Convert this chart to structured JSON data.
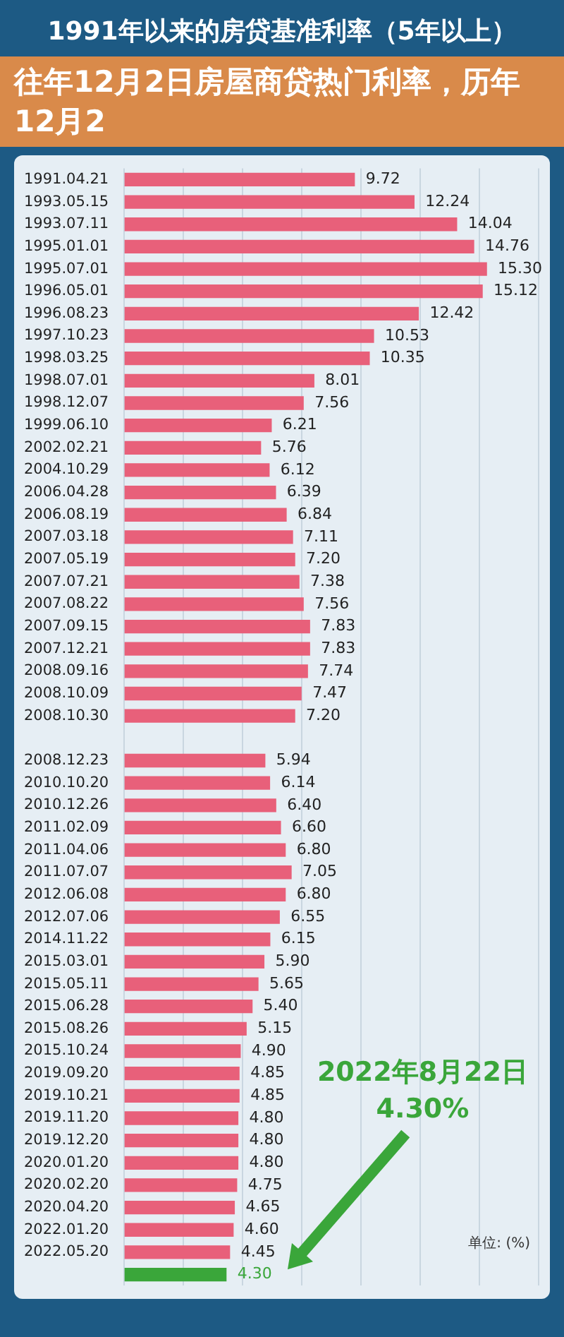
{
  "chart_data": {
    "type": "bar",
    "orientation": "horizontal",
    "title": "1991年以来的房贷基准利率（5年以上）",
    "categories": [
      "1991.04.21",
      "1993.05.15",
      "1993.07.11",
      "1995.01.01",
      "1995.07.01",
      "1996.05.01",
      "1996.08.23",
      "1997.10.23",
      "1998.03.25",
      "1998.07.01",
      "1998.12.07",
      "1999.06.10",
      "2002.02.21",
      "2004.10.29",
      "2006.04.28",
      "2006.08.19",
      "2007.03.18",
      "2007.05.19",
      "2007.07.21",
      "2007.08.22",
      "2007.09.15",
      "2007.12.21",
      "2008.09.16",
      "2008.10.09",
      "2008.10.30",
      null,
      "2008.12.23",
      "2010.10.20",
      "2010.12.26",
      "2011.02.09",
      "2011.04.06",
      "2011.07.07",
      "2012.06.08",
      "2012.07.06",
      "2014.11.22",
      "2015.03.01",
      "2015.05.11",
      "2015.06.28",
      "2015.08.26",
      "2015.10.24",
      "2019.09.20",
      "2019.10.21",
      "2019.11.20",
      "2019.12.20",
      "2020.01.20",
      "2020.02.20",
      "2020.04.20",
      "2022.01.20",
      "2022.05.20",
      null
    ],
    "values": [
      9.72,
      12.24,
      14.04,
      14.76,
      15.3,
      15.12,
      12.42,
      10.53,
      10.35,
      8.01,
      7.56,
      6.21,
      5.76,
      6.12,
      6.39,
      6.84,
      7.11,
      7.2,
      7.38,
      7.56,
      7.83,
      7.83,
      7.74,
      7.47,
      7.2,
      null,
      5.94,
      6.14,
      6.4,
      6.6,
      6.8,
      7.05,
      6.8,
      6.55,
      6.15,
      5.9,
      5.65,
      5.4,
      5.15,
      4.9,
      4.85,
      4.85,
      4.8,
      4.8,
      4.8,
      4.75,
      4.65,
      4.6,
      4.45,
      4.3
    ],
    "value_labels": [
      "9.72",
      "12.24",
      "14.04",
      "14.76",
      "15.30",
      "15.12",
      "12.42",
      "10.53",
      "10.35",
      "8.01",
      "7.56",
      "6.21",
      "5.76",
      "6.12",
      "6.39",
      "6.84",
      "7.11",
      "7.20",
      "7.38",
      "7.56",
      "7.83",
      "7.83",
      "7.74",
      "7.47",
      "7.20",
      null,
      "5.94",
      "6.14",
      "6.40",
      "6.60",
      "6.80",
      "7.05",
      "6.80",
      "6.55",
      "6.15",
      "5.90",
      "5.65",
      "5.40",
      "5.15",
      "4.90",
      "4.85",
      "4.85",
      "4.80",
      "4.80",
      "4.80",
      "4.75",
      "4.65",
      "4.60",
      "4.45",
      "4.30"
    ],
    "colors": [
      "#e8607a",
      "#e8607a",
      "#e8607a",
      "#e8607a",
      "#e8607a",
      "#e8607a",
      "#e8607a",
      "#e8607a",
      "#e8607a",
      "#e8607a",
      "#e8607a",
      "#e8607a",
      "#e8607a",
      "#e8607a",
      "#e8607a",
      "#e8607a",
      "#e8607a",
      "#e8607a",
      "#e8607a",
      "#e8607a",
      "#e8607a",
      "#e8607a",
      "#e8607a",
      "#e8607a",
      "#e8607a",
      "#e8607a",
      "#e8607a",
      "#e8607a",
      "#e8607a",
      "#e8607a",
      "#e8607a",
      "#e8607a",
      "#e8607a",
      "#e8607a",
      "#e8607a",
      "#e8607a",
      "#e8607a",
      "#e8607a",
      "#e8607a",
      "#e8607a",
      "#e8607a",
      "#e8607a",
      "#e8607a",
      "#e8607a",
      "#e8607a",
      "#e8607a",
      "#e8607a",
      "#e8607a",
      "#e8607a",
      "#3aa63a"
    ],
    "xlim": [
      0,
      17.5
    ],
    "xticks": [
      {
        "value": 0,
        "label": null
      },
      {
        "value": 2.5,
        "label": null
      },
      {
        "value": 5,
        "label": null
      },
      {
        "value": 7.5,
        "label": null
      },
      {
        "value": 10,
        "label": null
      },
      {
        "value": 12.5,
        "label": null
      },
      {
        "value": 15,
        "label": null
      },
      {
        "value": 17.5,
        "label": null
      }
    ],
    "tick_labels": "y",
    "grid": "x",
    "legend": false,
    "annotations": [
      "往年12月2日房屋商贷热门利率，历年12月2",
      "2022年8月22日",
      "4.30%",
      "单位: (%)"
    ]
  }
}
